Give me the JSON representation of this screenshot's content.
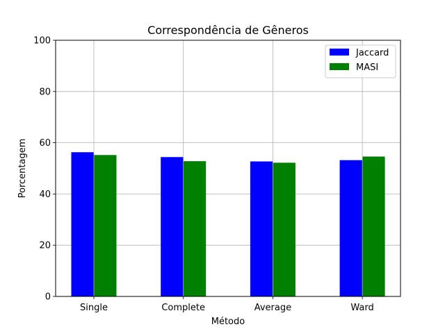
{
  "chart_data": {
    "type": "bar",
    "title": "Correspondência de Gêneros",
    "xlabel": "Método",
    "ylabel": "Porcentagem",
    "categories": [
      "Single",
      "Complete",
      "Average",
      "Ward"
    ],
    "series": [
      {
        "name": "Jaccard",
        "color": "#0000ff",
        "values": [
          56.3,
          54.4,
          52.7,
          53.2
        ]
      },
      {
        "name": "MASI",
        "color": "#008000",
        "values": [
          55.2,
          52.8,
          52.2,
          54.6
        ]
      }
    ],
    "ylim": [
      0,
      100
    ],
    "yticks": [
      0,
      20,
      40,
      60,
      80,
      100
    ],
    "grid": true,
    "legend_position": "top-right"
  }
}
